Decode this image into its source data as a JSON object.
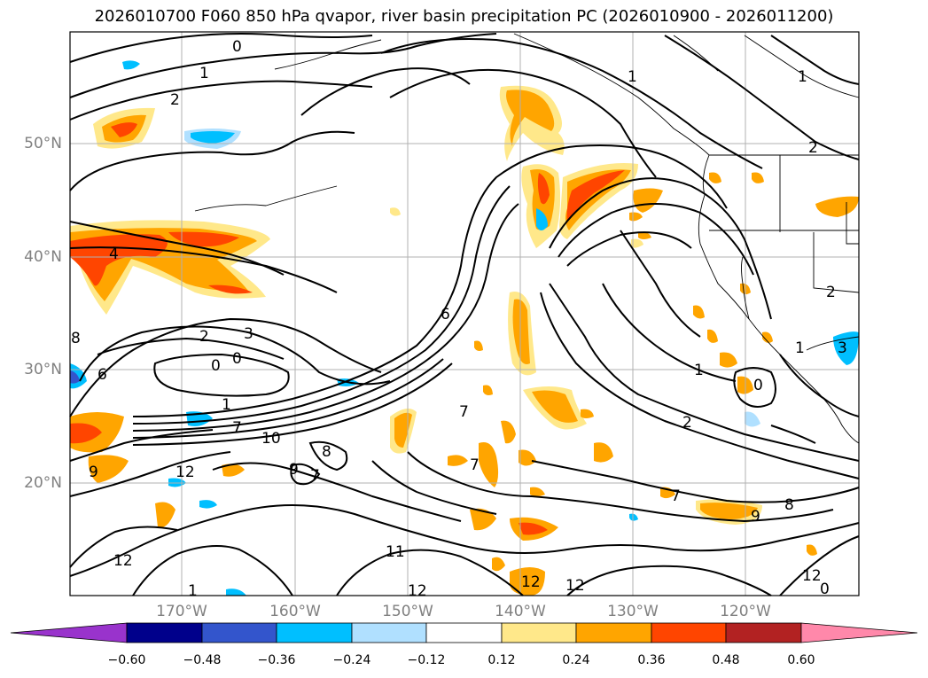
{
  "title": "2026010700 F060 850 hPa qvapor, river basin precipitation PC (2026010900 - 2026011200)",
  "lat_labels": [
    "50°N",
    "40°N",
    "30°N",
    "20°N"
  ],
  "lon_labels": [
    "170°W",
    "160°W",
    "150°W",
    "140°W",
    "130°W",
    "120°W"
  ],
  "colorbar": {
    "ticks": [
      "−0.60",
      "−0.48",
      "−0.36",
      "−0.24",
      "−0.12",
      "0.12",
      "0.24",
      "0.36",
      "0.48",
      "0.60"
    ],
    "colors": [
      "#9933cc",
      "#00008b",
      "#3355cc",
      "#00bfff",
      "#b0e0ff",
      "#ffffff",
      "#ffe88a",
      "#ffa500",
      "#ff4500",
      "#b22222",
      "#ff88aa"
    ]
  },
  "contour_labels": [
    "0",
    "1",
    "2",
    "4",
    "6",
    "2",
    "3",
    "0",
    "0",
    "1",
    "7",
    "10",
    "9",
    "12",
    "8",
    "9",
    "7",
    "12",
    "1",
    "7",
    "7",
    "8",
    "6",
    "1",
    "2",
    "0",
    "1",
    "3",
    "7",
    "9",
    "8",
    "11",
    "12",
    "12",
    "12",
    "12",
    "0",
    "1",
    "2",
    "2",
    "1"
  ]
}
